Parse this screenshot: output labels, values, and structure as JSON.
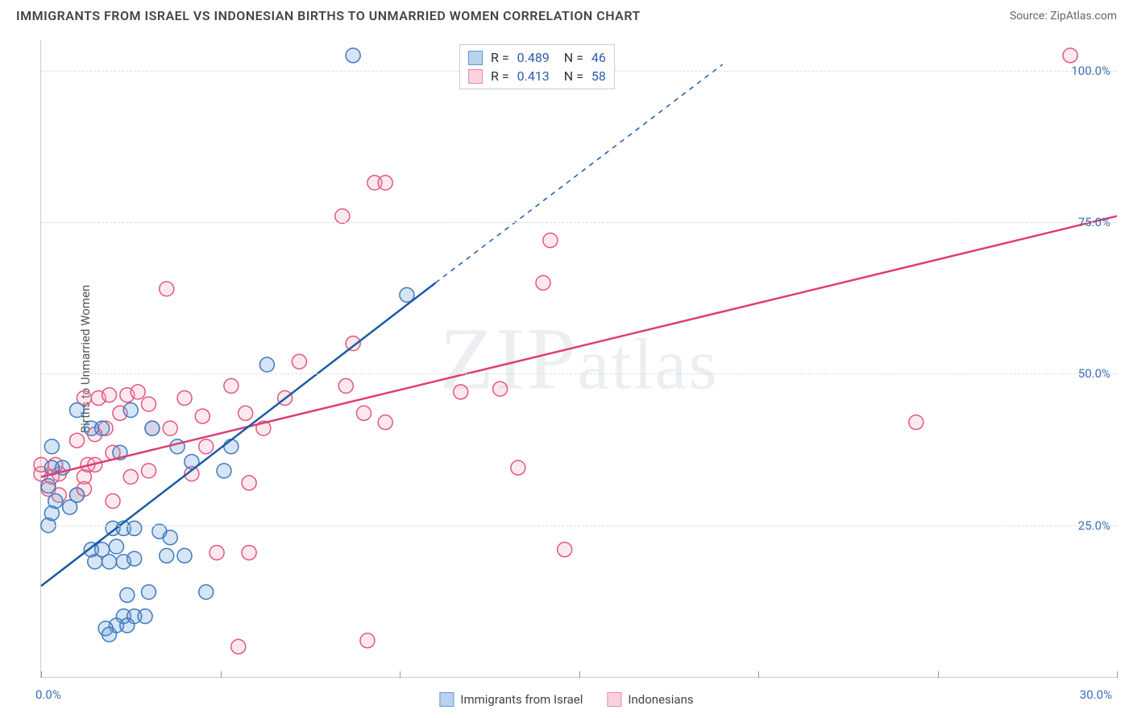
{
  "header": {
    "title": "IMMIGRANTS FROM ISRAEL VS INDONESIAN BIRTHS TO UNMARRIED WOMEN CORRELATION CHART",
    "source_prefix": "Source: ",
    "source_name": "ZipAtlas.com"
  },
  "chart": {
    "type": "scatter",
    "watermark": "ZIPatlas",
    "background_color": "#ffffff",
    "grid_color": "#dddddd",
    "axis_color": "#cccccc",
    "tick_label_color": "#3b6fb6",
    "y_axis_label": "Births to Unmarried Women",
    "xlim": [
      0,
      30
    ],
    "ylim": [
      0,
      105
    ],
    "x_ticks": [
      0,
      5,
      10,
      15,
      20,
      25,
      30
    ],
    "y_gridlines": [
      25,
      50,
      75,
      100
    ],
    "x_tick_labels": {
      "0": "0.0%",
      "30": "30.0%"
    },
    "y_tick_labels": {
      "25": "25.0%",
      "50": "50.0%",
      "75": "75.0%",
      "100": "100.0%"
    },
    "marker_radius": 9,
    "marker_stroke_width": 1.5,
    "marker_fill_opacity": 0.25,
    "series": [
      {
        "name": "Immigrants from Israel",
        "color": "#5d97d4",
        "stroke": "#3f7abf",
        "trend_color": "#1c5aa6",
        "r": 0.489,
        "n": 46,
        "trend_line": {
          "x1": 0,
          "y1": 15,
          "x2": 11,
          "y2": 65
        },
        "trend_dash": {
          "x1": 11,
          "y1": 65,
          "x2": 19,
          "y2": 101
        },
        "points": [
          [
            8.7,
            102.5
          ],
          [
            2.0,
            24.5
          ],
          [
            2.3,
            24.5
          ],
          [
            2.6,
            24.5
          ],
          [
            1.4,
            21
          ],
          [
            1.7,
            21
          ],
          [
            2.1,
            21.5
          ],
          [
            1.5,
            19
          ],
          [
            1.9,
            19
          ],
          [
            2.3,
            19
          ],
          [
            2.6,
            19.5
          ],
          [
            3.5,
            20
          ],
          [
            4.0,
            20
          ],
          [
            2.4,
            13.5
          ],
          [
            3.0,
            14
          ],
          [
            4.6,
            14
          ],
          [
            2.3,
            10
          ],
          [
            2.6,
            10
          ],
          [
            2.9,
            10
          ],
          [
            2.1,
            8.5
          ],
          [
            2.4,
            8.5
          ],
          [
            1.8,
            8
          ],
          [
            1.9,
            7
          ],
          [
            0.8,
            28
          ],
          [
            1.0,
            30
          ],
          [
            0.6,
            34.5
          ],
          [
            0.3,
            38
          ],
          [
            0.2,
            25
          ],
          [
            0.3,
            27
          ],
          [
            0.4,
            29
          ],
          [
            0.2,
            31.5
          ],
          [
            0.3,
            34.5
          ],
          [
            1.4,
            41
          ],
          [
            1.7,
            41
          ],
          [
            2.5,
            44
          ],
          [
            2.2,
            37
          ],
          [
            3.1,
            41
          ],
          [
            3.8,
            38
          ],
          [
            6.3,
            51.5
          ],
          [
            5.1,
            34
          ],
          [
            5.3,
            38
          ],
          [
            3.3,
            24
          ],
          [
            3.6,
            23
          ],
          [
            10.2,
            63
          ],
          [
            4.2,
            35.5
          ],
          [
            1.0,
            44
          ]
        ]
      },
      {
        "name": "Indonesians",
        "color": "#f2a7bd",
        "stroke": "#e2577f",
        "trend_color": "#de3e70",
        "r": 0.413,
        "n": 58,
        "trend_line": {
          "x1": 0,
          "y1": 33,
          "x2": 30,
          "y2": 76
        },
        "points": [
          [
            28.7,
            102.5
          ],
          [
            0.3,
            33
          ],
          [
            0.5,
            33.5
          ],
          [
            0.4,
            35
          ],
          [
            0.0,
            33.5
          ],
          [
            0.0,
            35
          ],
          [
            1.2,
            33
          ],
          [
            1.3,
            35
          ],
          [
            1.5,
            35
          ],
          [
            1.0,
            39
          ],
          [
            1.5,
            40
          ],
          [
            1.8,
            41
          ],
          [
            1.2,
            46
          ],
          [
            1.6,
            46
          ],
          [
            1.9,
            46.5
          ],
          [
            2.4,
            46.5
          ],
          [
            2.7,
            47
          ],
          [
            3.1,
            41
          ],
          [
            2.0,
            37
          ],
          [
            3.0,
            45
          ],
          [
            3.6,
            41
          ],
          [
            4.0,
            46
          ],
          [
            4.5,
            43
          ],
          [
            4.2,
            33.5
          ],
          [
            5.8,
            32
          ],
          [
            5.7,
            43.5
          ],
          [
            5.3,
            48
          ],
          [
            6.2,
            41
          ],
          [
            3.5,
            64
          ],
          [
            4.9,
            20.5
          ],
          [
            5.8,
            20.5
          ],
          [
            5.5,
            5
          ],
          [
            7.2,
            52
          ],
          [
            8.4,
            76
          ],
          [
            8.5,
            48
          ],
          [
            8.7,
            55
          ],
          [
            9.0,
            43.5
          ],
          [
            9.1,
            6
          ],
          [
            9.3,
            81.5
          ],
          [
            9.6,
            81.5
          ],
          [
            9.6,
            42
          ],
          [
            11.7,
            47
          ],
          [
            12.8,
            47.5
          ],
          [
            13.3,
            34.5
          ],
          [
            14.0,
            65
          ],
          [
            14.2,
            72
          ],
          [
            14.6,
            21
          ],
          [
            24.4,
            42
          ],
          [
            1.0,
            30
          ],
          [
            1.2,
            31
          ],
          [
            2.0,
            29
          ],
          [
            2.5,
            33
          ],
          [
            3.0,
            34
          ],
          [
            0.2,
            31
          ],
          [
            0.5,
            30
          ],
          [
            2.2,
            43.5
          ],
          [
            6.8,
            46
          ],
          [
            4.6,
            38
          ]
        ]
      }
    ],
    "legend": {
      "items": [
        {
          "label": "Immigrants from Israel",
          "fill": "#b9d2ef",
          "stroke": "#5d97d4"
        },
        {
          "label": "Indonesians",
          "fill": "#f9d2de",
          "stroke": "#e68aa7"
        }
      ]
    }
  }
}
